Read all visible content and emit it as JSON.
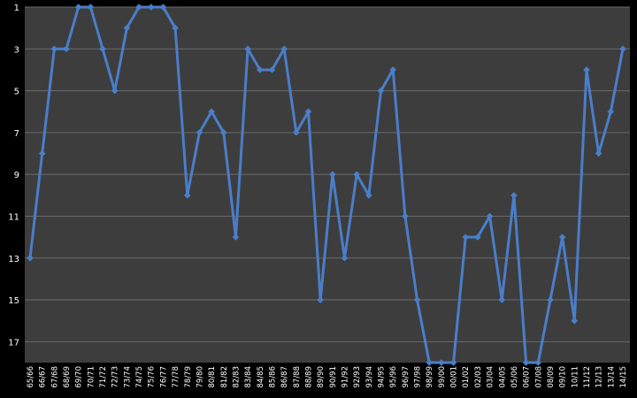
{
  "chart_data": {
    "type": "line",
    "title": "",
    "xlabel": "",
    "ylabel": "",
    "y_axis": {
      "reversed": true,
      "min": 1,
      "max": 18,
      "ticks": [
        1,
        3,
        5,
        7,
        9,
        11,
        13,
        15,
        17
      ]
    },
    "grid": true,
    "legend": "none",
    "categories": [
      "65/66",
      "66/67",
      "67/68",
      "68/69",
      "69/70",
      "70/71",
      "71/72",
      "72/73",
      "73/74",
      "74/75",
      "75/76",
      "76/77",
      "77/78",
      "78/79",
      "79/80",
      "80/81",
      "81/82",
      "82/83",
      "83/84",
      "84/85",
      "85/86",
      "86/87",
      "87/88",
      "88/89",
      "89/90",
      "90/91",
      "91/92",
      "92/93",
      "93/94",
      "94/95",
      "95/96",
      "96/97",
      "97/98",
      "98/99",
      "99/00",
      "00/01",
      "01/02",
      "02/03",
      "03/04",
      "04/05",
      "05/06",
      "06/07",
      "07/08",
      "08/09",
      "09/10",
      "10/11",
      "11/12",
      "12/13",
      "13/14",
      "14/15"
    ],
    "series": [
      {
        "values": [
          13,
          8,
          3,
          3,
          1,
          1,
          3,
          5,
          2,
          1,
          1,
          1,
          2,
          10,
          7,
          6,
          7,
          12,
          3,
          4,
          4,
          3,
          7,
          6,
          15,
          9,
          13,
          9,
          10,
          5,
          4,
          11,
          15,
          18,
          18,
          18,
          12,
          12,
          11,
          15,
          10,
          18,
          18,
          15,
          12,
          16,
          4,
          8,
          6,
          3
        ]
      }
    ],
    "colors": {
      "background": "#000000",
      "plot_area": "#3d3d3d",
      "gridline": "#6a6a6a",
      "line": "#4a7ec9",
      "marker": "#4a7ec9",
      "text": "#ffffff"
    }
  }
}
